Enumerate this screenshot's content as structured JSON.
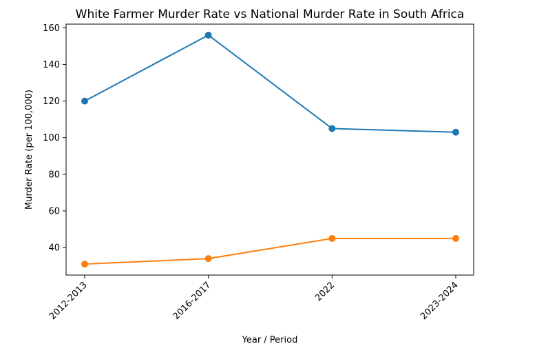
{
  "chart_data": {
    "type": "line",
    "title": "White Farmer Murder Rate vs National Murder Rate in South Africa",
    "xlabel": "Year / Period",
    "ylabel": "Murder Rate (per 100,000)",
    "categories": [
      "2012-2013",
      "2016-2017",
      "2022",
      "2023-2024"
    ],
    "ylim": [
      25,
      162
    ],
    "yticks": [
      40,
      60,
      80,
      100,
      120,
      140,
      160
    ],
    "grid": false,
    "series": [
      {
        "values": [
          120,
          156,
          105,
          103
        ],
        "color": "#1f77b4"
      },
      {
        "values": [
          31,
          34,
          45,
          45
        ],
        "color": "#ff7f0e"
      }
    ]
  }
}
